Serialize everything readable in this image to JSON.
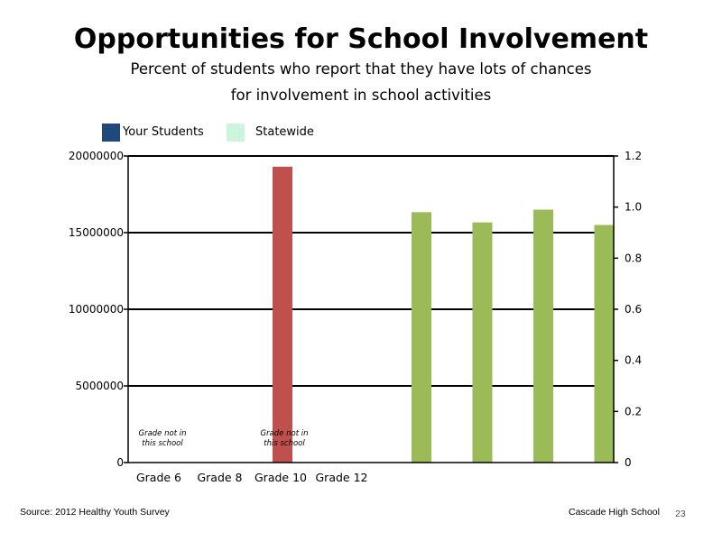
{
  "slide": {
    "source": "Source: 2012 Healthy Youth Survey",
    "school": "Cascade High School",
    "page_number": "23"
  },
  "colors": {
    "your_students": "#1F497D",
    "statewide": "#CCF5DD",
    "red_bar": "#C0504D",
    "green_bar": "#9BBB59",
    "gridline": "#000000"
  },
  "chart_data": {
    "type": "bar",
    "title": "Opportunities for School Involvement",
    "subtitle_lines": [
      "Percent of students who report that they have lots of chances",
      "for involvement in school activities"
    ],
    "legend": [
      "Your Students",
      "Statewide"
    ],
    "legend_position": "top-left",
    "categories": [
      "Grade 6",
      "Grade 8",
      "Grade 10",
      "Grade 12"
    ],
    "left_axis": {
      "min": 0,
      "max": 20000000,
      "ticks": [
        "0",
        "5000000",
        "10000000",
        "15000000",
        "20000000"
      ],
      "tick_values": [
        0,
        5000000,
        10000000,
        15000000,
        20000000
      ]
    },
    "right_axis": {
      "min": 0,
      "max": 1.2,
      "ticks": [
        "0",
        "0.2",
        "0.4",
        "0.6",
        "0.8",
        "1.0",
        "1.2"
      ],
      "tick_values": [
        0,
        0.2,
        0.4,
        0.6,
        0.8,
        1.0,
        1.2
      ]
    },
    "gridlines": true,
    "left_axis_bars": [
      {
        "category": "Grade 10",
        "value": 19300000
      }
    ],
    "right_axis_bars": [
      0.98,
      0.94,
      0.99,
      0.93
    ],
    "annotations": [
      {
        "category": "Grade 6",
        "text_lines": [
          "Grade not in",
          "this school"
        ]
      },
      {
        "category": "Grade 10",
        "text_lines": [
          "Grade not in",
          "this school"
        ]
      }
    ]
  }
}
